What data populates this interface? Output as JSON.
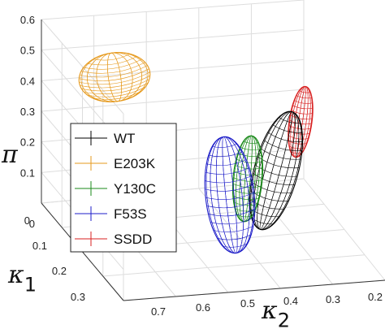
{
  "chart_data": {
    "type": "scatter",
    "variant": "3d-ellipsoids-wireframe",
    "title": "",
    "axes": {
      "x": {
        "symbol": "κ",
        "subscript": "2",
        "ticks": [
          "0.7",
          "0.6",
          "0.5",
          "0.4",
          "0.3",
          "0.2"
        ],
        "range": [
          0.75,
          0.15
        ]
      },
      "y": {
        "symbol": "κ",
        "subscript": "1",
        "ticks": [
          "0",
          "0.1",
          "0.2",
          "0.3"
        ],
        "range": [
          0,
          0.35
        ]
      },
      "z": {
        "symbol": "π",
        "ticks": [
          "0",
          "0.1",
          "0.2",
          "0.3",
          "0.4",
          "0.5",
          "0.6"
        ],
        "range": [
          0,
          0.65
        ]
      }
    },
    "grid": true,
    "legend_position": "left-center",
    "series": [
      {
        "name": "WT",
        "color": "#000000",
        "center": {
          "kappa2": 0.3,
          "kappa1": 0.18,
          "pi": 0.24
        }
      },
      {
        "name": "E203K",
        "color": "#e69a1e",
        "center": {
          "kappa2": 0.72,
          "kappa1": 0.02,
          "pi": 0.55
        }
      },
      {
        "name": "Y130C",
        "color": "#1a8a1a",
        "center": {
          "kappa2": 0.38,
          "kappa1": 0.17,
          "pi": 0.18
        }
      },
      {
        "name": "F53S",
        "color": "#1c1cc8",
        "center": {
          "kappa2": 0.43,
          "kappa1": 0.2,
          "pi": 0.13
        }
      },
      {
        "name": "SSDD",
        "color": "#d82020",
        "center": {
          "kappa2": 0.2,
          "kappa1": 0.2,
          "pi": 0.4
        }
      }
    ]
  }
}
